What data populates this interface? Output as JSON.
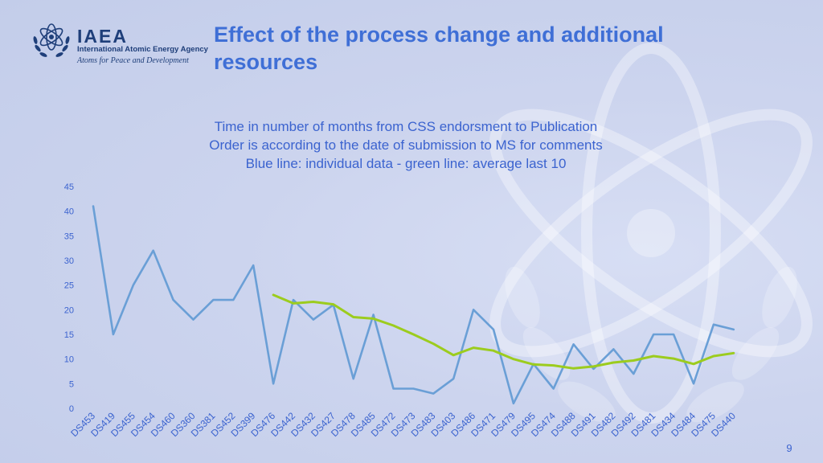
{
  "header": {
    "logo_acronym": "IAEA",
    "logo_name": "International Atomic Energy Agency",
    "logo_motto": "Atoms for Peace and Development",
    "slide_title": "Effect of the process change and additional resources"
  },
  "slide_number": "9",
  "colors": {
    "individual_line": "#6a9fd6",
    "average_line": "#9ccc1e",
    "title": "#3f6fd6",
    "chart_text": "#3b63cf"
  },
  "chart_data": {
    "type": "line",
    "title": "Time in number of months from CSS endorsment to Publication",
    "subtitles": [
      "Order is according to the date of submission to MS for comments",
      "Blue line: individual data - green line: average last 10"
    ],
    "categories": [
      "DS453",
      "DS419",
      "DS455",
      "DS454",
      "DS460",
      "DS360",
      "DS381",
      "DS452",
      "DS399",
      "DS476",
      "DS442",
      "DS432",
      "DS427",
      "DS478",
      "DS485",
      "DS472",
      "DS473",
      "DS483",
      "DS403",
      "DS486",
      "DS471",
      "DS479",
      "DS495",
      "DS474",
      "DS488",
      "DS491",
      "DS482",
      "DS492",
      "DS481",
      "DS434",
      "DS484",
      "DS475",
      "DS440"
    ],
    "ylim": [
      0,
      45
    ],
    "yticks": [
      0,
      5,
      10,
      15,
      20,
      25,
      30,
      35,
      40,
      45
    ],
    "grid": true,
    "series": [
      {
        "values": [
          41,
          15,
          25,
          32,
          22,
          18,
          22,
          22,
          29,
          5,
          22,
          18,
          21,
          6,
          19,
          4,
          4,
          3,
          6,
          20,
          16,
          1,
          9,
          4,
          13,
          8,
          12,
          7,
          15,
          15,
          5,
          17,
          16
        ]
      },
      {
        "values": [
          null,
          null,
          null,
          null,
          null,
          null,
          null,
          null,
          null,
          23,
          21.3,
          21.6,
          21.1,
          18.5,
          18.2,
          16.8,
          15,
          13.1,
          10.8,
          12.3,
          11.7,
          10,
          8.9,
          8.7,
          8.1,
          8.5,
          9.3,
          9.7,
          10.6,
          10.1,
          9,
          10.6,
          11.2
        ]
      }
    ]
  }
}
